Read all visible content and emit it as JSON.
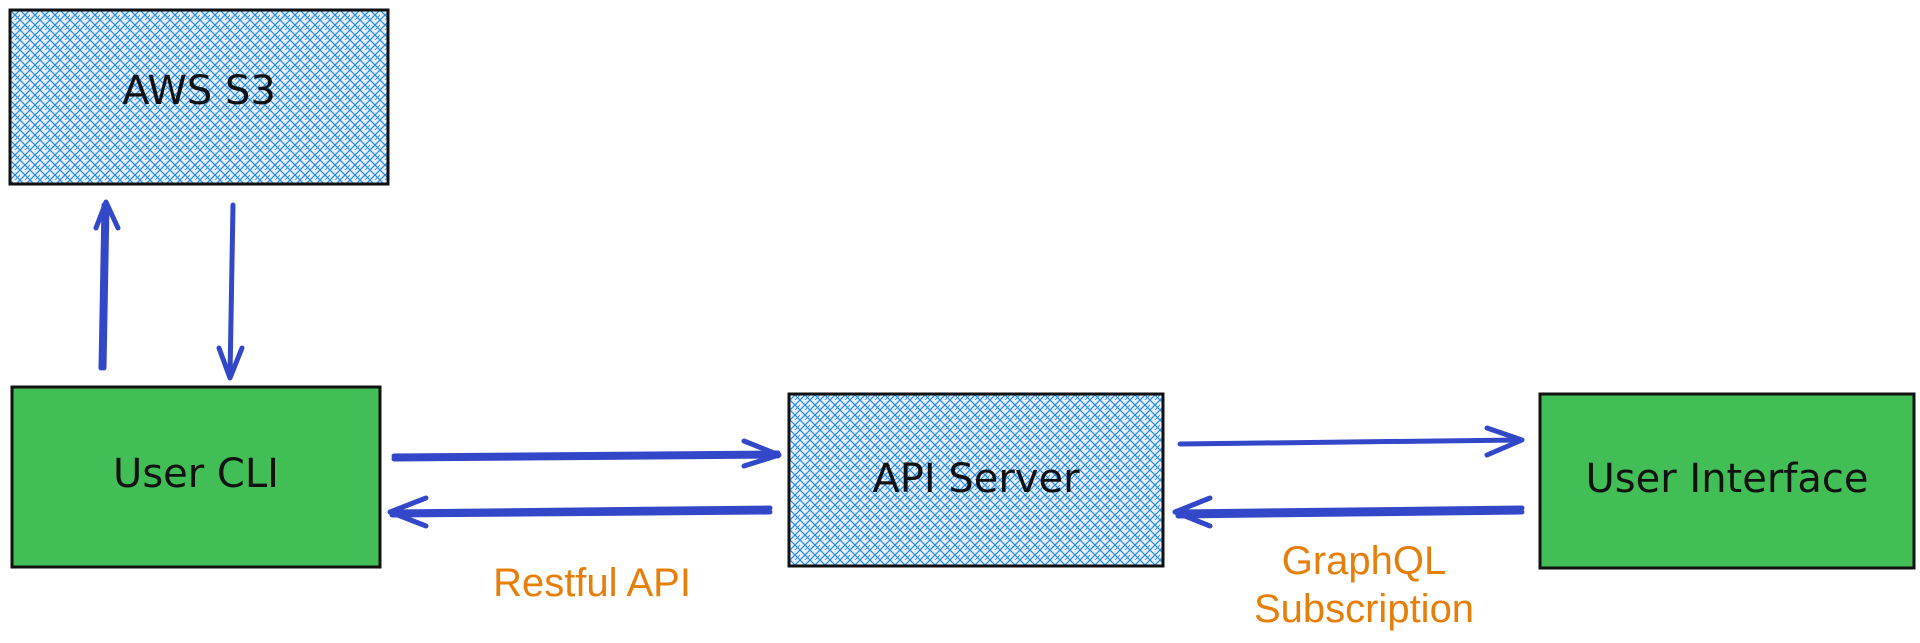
{
  "colors": {
    "hatch_fill": "#2a8ae0",
    "hatch_bg": "#e6f1fb",
    "green_fill": "#41be55",
    "arrow": "#3347c9",
    "label": "#e67e0a",
    "stroke": "#111111"
  },
  "nodes": {
    "aws_s3": "AWS S3",
    "user_cli": "User CLI",
    "api_server": "API Server",
    "user_interface": "User Interface"
  },
  "edges": {
    "restful_api": "Restful API",
    "graphql_line1": "GraphQL",
    "graphql_line2": "Subscription"
  }
}
